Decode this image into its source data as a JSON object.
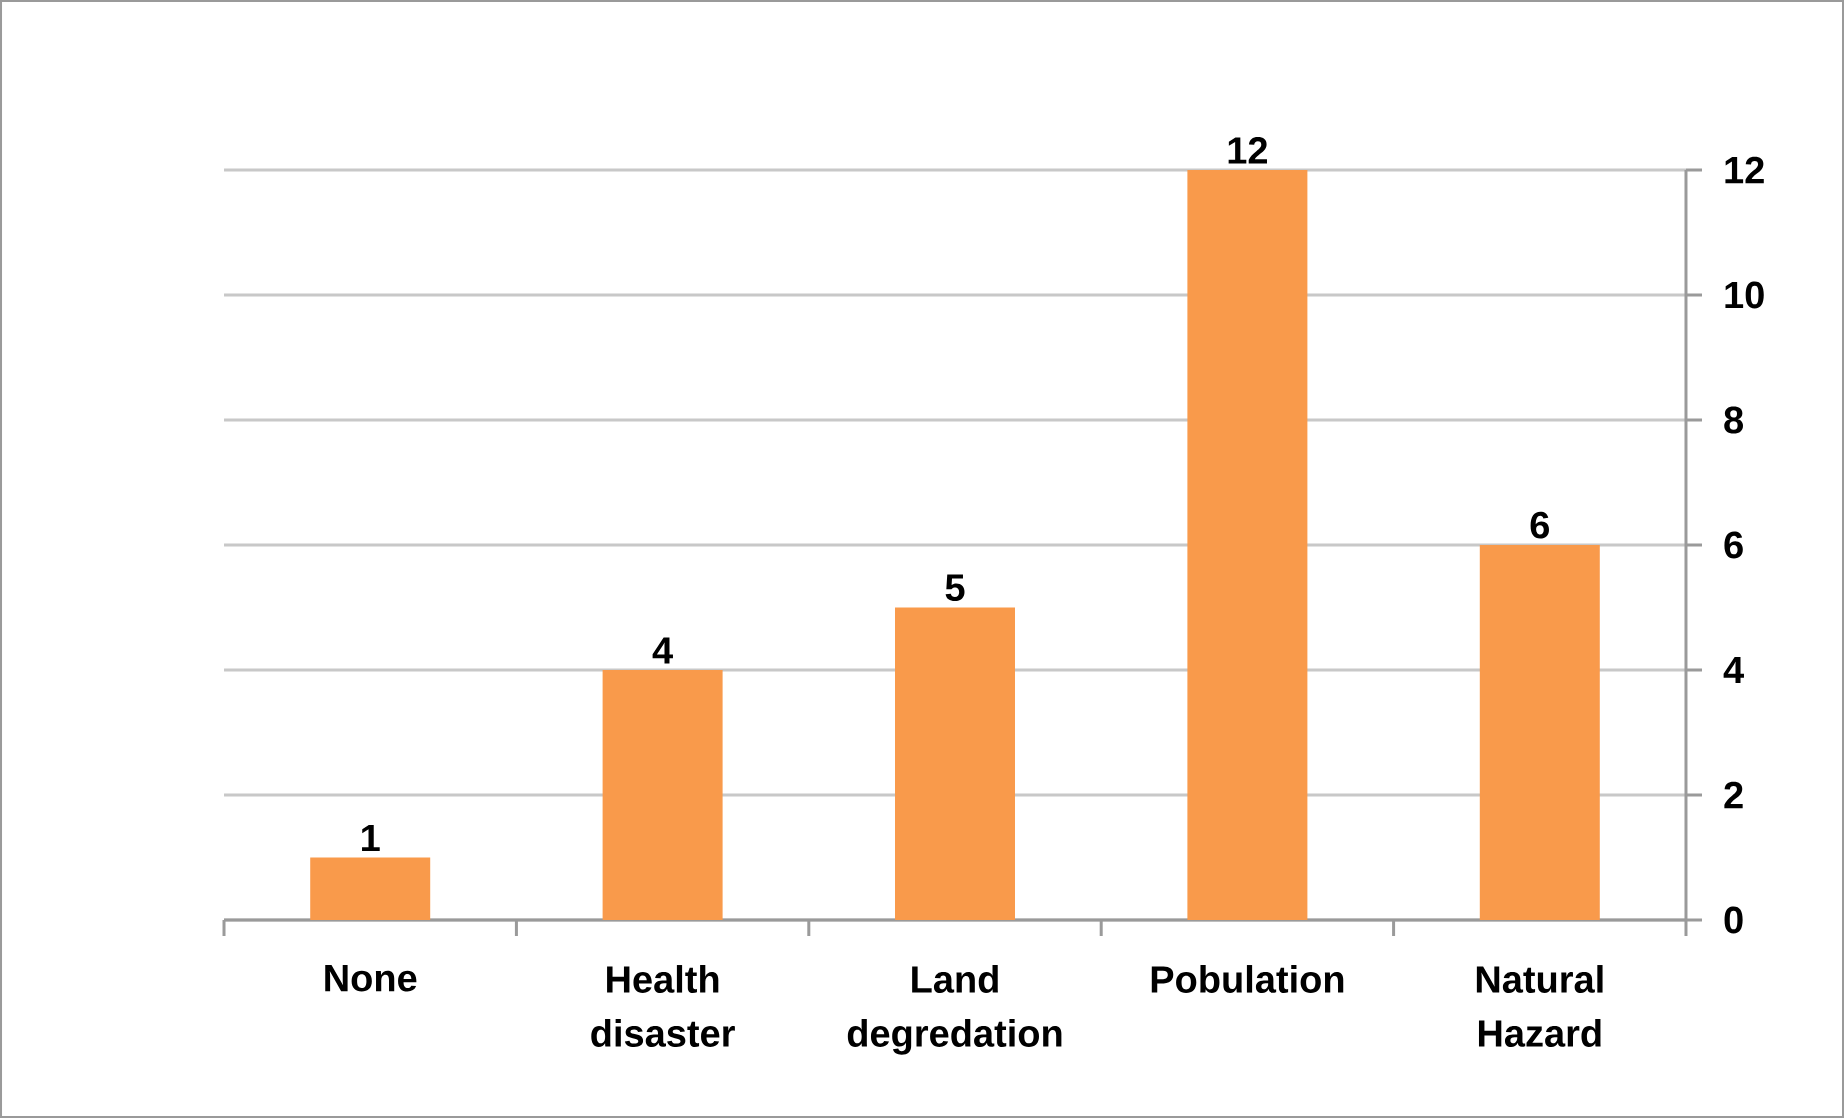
{
  "chart_data": {
    "type": "bar",
    "categories": [
      "None",
      "Health disaster",
      "Land degredation",
      "Pobulation",
      "Natural Hazard"
    ],
    "values": [
      1,
      4,
      5,
      12,
      6
    ],
    "color": "#f99a4b",
    "ylim": [
      0,
      12
    ],
    "yticks": [
      0,
      2,
      4,
      6,
      8,
      10,
      12
    ],
    "grid": "y",
    "data_labels": true
  }
}
